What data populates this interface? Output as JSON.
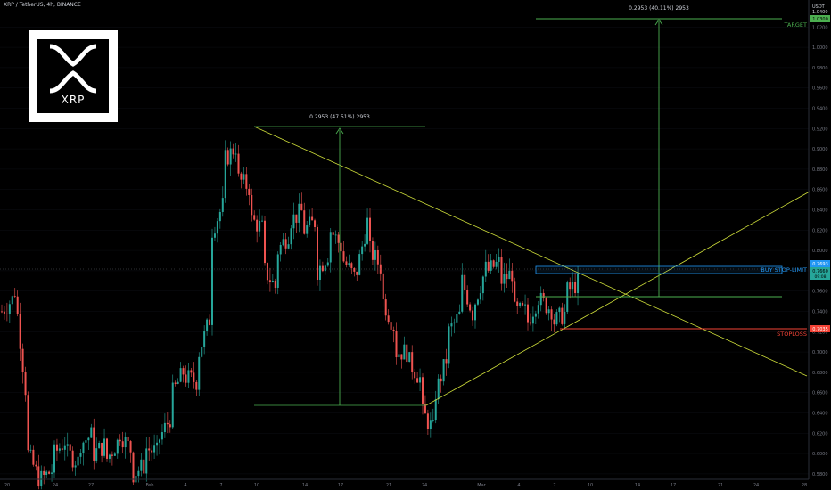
{
  "header": {
    "symbol": "XRP / TetherUS, 4h, BINANCE"
  },
  "logo": {
    "text": "XRP"
  },
  "axis": {
    "currency_lines": [
      "USDT",
      "1.0400"
    ],
    "price_ticks": [
      "1.0200",
      "1.0000",
      "0.9800",
      "0.9600",
      "0.9400",
      "0.9200",
      "0.9000",
      "0.8800",
      "0.8600",
      "0.8400",
      "0.8200",
      "0.8000",
      "0.7800",
      "0.7600",
      "0.7400",
      "0.7200",
      "0.7000",
      "0.6800",
      "0.6600",
      "0.6400",
      "0.6200",
      "0.6000",
      "0.5800",
      "0.5600"
    ],
    "date_ticks": [
      "20",
      "24",
      "27",
      "Feb",
      "4",
      "7",
      "10",
      "14",
      "17",
      "21",
      "24",
      "Mar",
      "4",
      "7",
      "10",
      "14",
      "17",
      "21",
      "24",
      "28"
    ]
  },
  "measures": {
    "left_label": "0.2953 (47.51%) 2953",
    "right_label": "0.2953 (40.11%) 2953"
  },
  "levels": {
    "target": {
      "label": "TARGET",
      "price": "1.0300",
      "color": "#4caf50"
    },
    "buy": {
      "label": "BUY STOP-LIMIT",
      "price": "0.7693",
      "color": "#2196f3"
    },
    "current": {
      "price": "0.7660",
      "sub": "09:08",
      "color": "#26a69a"
    },
    "stoploss": {
      "label": "STOPLOSS",
      "price": "0.7035",
      "color": "#f44336"
    }
  },
  "colors": {
    "up": "#26a69a",
    "down": "#ef5350",
    "trend": "#cddc39",
    "measure": "#4caf50"
  },
  "chart_data": {
    "type": "candlestick",
    "timeframe": "4h",
    "price_range": [
      0.55,
      1.04
    ],
    "series": [
      {
        "name": "path",
        "points": [
          [
            0.74,
            0.755
          ],
          [
            0.76,
            0.64
          ],
          [
            0.6,
            0.57
          ],
          [
            0.575,
            0.585
          ],
          [
            0.6,
            0.615
          ],
          [
            0.6,
            0.59
          ],
          [
            0.61,
            0.62
          ],
          [
            0.6,
            0.61
          ],
          [
            0.595,
            0.615
          ],
          [
            0.62,
            0.6
          ],
          [
            0.58,
            0.59
          ],
          [
            0.605,
            0.6
          ],
          [
            0.615,
            0.64
          ],
          [
            0.66,
            0.685
          ],
          [
            0.675,
            0.67
          ],
          [
            0.7,
            0.74
          ],
          [
            0.82,
            0.85
          ],
          [
            0.89,
            0.905
          ],
          [
            0.87,
            0.86
          ],
          [
            0.83,
            0.82
          ],
          [
            0.78,
            0.76
          ],
          [
            0.8,
            0.82
          ],
          [
            0.83,
            0.84
          ],
          [
            0.82,
            0.83
          ],
          [
            0.78,
            0.8
          ],
          [
            0.82,
            0.8
          ],
          [
            0.79,
            0.77
          ],
          [
            0.78,
            0.84
          ],
          [
            0.8,
            0.78
          ],
          [
            0.75,
            0.72
          ],
          [
            0.7,
            0.7
          ],
          [
            0.69,
            0.67
          ],
          [
            0.64,
            0.62
          ],
          [
            0.66,
            0.7
          ],
          [
            0.72,
            0.74
          ],
          [
            0.77,
            0.73
          ],
          [
            0.75,
            0.79
          ],
          [
            0.78,
            0.79
          ],
          [
            0.77,
            0.78
          ],
          [
            0.74,
            0.74
          ],
          [
            0.73,
            0.76
          ],
          [
            0.75,
            0.74
          ],
          [
            0.73,
            0.74
          ],
          [
            0.76,
            0.77
          ]
        ]
      }
    ]
  }
}
